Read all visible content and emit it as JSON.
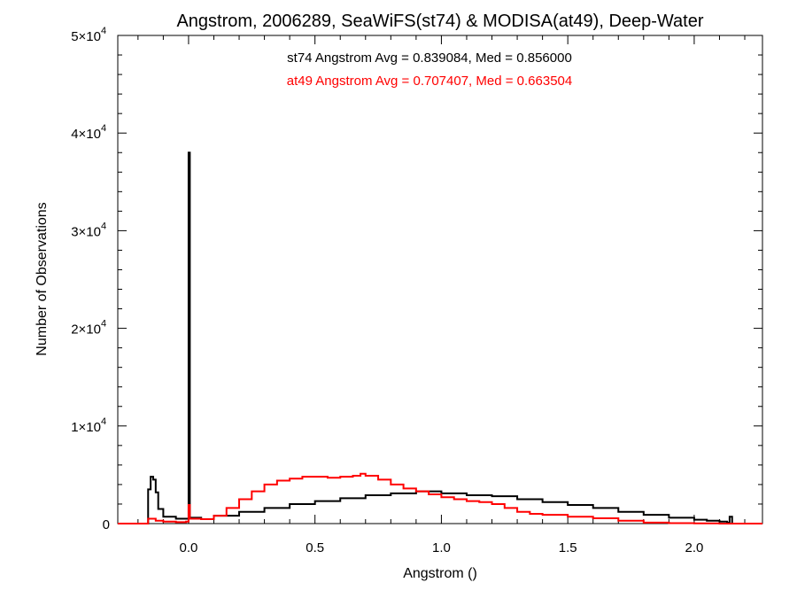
{
  "chart_data": {
    "type": "histogram",
    "title": "Angstrom, 2006289, SeaWiFS(st74) & MODISA(at49), Deep-Water",
    "xlabel": "Angstrom ()",
    "ylabel": "Number of Observations",
    "xlim": [
      -0.28,
      2.27
    ],
    "ylim": [
      0,
      50000
    ],
    "x_ticks": [
      {
        "value": 0.0,
        "label": "0.0"
      },
      {
        "value": 0.5,
        "label": "0.5"
      },
      {
        "value": 1.0,
        "label": "1.0"
      },
      {
        "value": 1.5,
        "label": "1.5"
      },
      {
        "value": 2.0,
        "label": "2.0"
      }
    ],
    "y_ticks": [
      {
        "value": 0,
        "label": "0",
        "exp": ""
      },
      {
        "value": 10000,
        "label": "1×10",
        "exp": "4"
      },
      {
        "value": 20000,
        "label": "2×10",
        "exp": "4"
      },
      {
        "value": 30000,
        "label": "3×10",
        "exp": "4"
      },
      {
        "value": 40000,
        "label": "4×10",
        "exp": "4"
      },
      {
        "value": 50000,
        "label": "5×10",
        "exp": "4"
      }
    ],
    "series": [
      {
        "name": "st74",
        "color": "#000000",
        "stats_text": "st74 Angstrom Avg = 0.839084, Med = 0.856000",
        "points": [
          [
            -0.28,
            0
          ],
          [
            -0.17,
            0
          ],
          [
            -0.16,
            3500
          ],
          [
            -0.15,
            4800
          ],
          [
            -0.14,
            4500
          ],
          [
            -0.13,
            3200
          ],
          [
            -0.12,
            1500
          ],
          [
            -0.1,
            700
          ],
          [
            -0.05,
            500
          ],
          [
            -0.01,
            500
          ],
          [
            0.0,
            38000
          ],
          [
            0.005,
            600
          ],
          [
            0.05,
            450
          ],
          [
            0.1,
            800
          ],
          [
            0.2,
            1200
          ],
          [
            0.3,
            1600
          ],
          [
            0.4,
            2000
          ],
          [
            0.5,
            2300
          ],
          [
            0.6,
            2600
          ],
          [
            0.7,
            2900
          ],
          [
            0.8,
            3100
          ],
          [
            0.9,
            3300
          ],
          [
            1.0,
            3100
          ],
          [
            1.1,
            2900
          ],
          [
            1.2,
            2800
          ],
          [
            1.3,
            2500
          ],
          [
            1.4,
            2200
          ],
          [
            1.5,
            1900
          ],
          [
            1.6,
            1600
          ],
          [
            1.7,
            1200
          ],
          [
            1.8,
            900
          ],
          [
            1.9,
            600
          ],
          [
            2.0,
            400
          ],
          [
            2.05,
            300
          ],
          [
            2.1,
            200
          ],
          [
            2.13,
            100
          ],
          [
            2.14,
            700
          ],
          [
            2.15,
            0
          ],
          [
            2.27,
            0
          ]
        ]
      },
      {
        "name": "at49",
        "color": "#ff0000",
        "stats_text": "at49 Angstrom Avg = 0.707407, Med = 0.663504",
        "points": [
          [
            -0.28,
            0
          ],
          [
            -0.17,
            0
          ],
          [
            -0.16,
            500
          ],
          [
            -0.13,
            300
          ],
          [
            -0.1,
            200
          ],
          [
            -0.05,
            150
          ],
          [
            -0.01,
            200
          ],
          [
            0.0,
            1900
          ],
          [
            0.005,
            500
          ],
          [
            0.05,
            450
          ],
          [
            0.1,
            800
          ],
          [
            0.15,
            1600
          ],
          [
            0.2,
            2500
          ],
          [
            0.25,
            3300
          ],
          [
            0.3,
            4000
          ],
          [
            0.35,
            4400
          ],
          [
            0.4,
            4600
          ],
          [
            0.45,
            4800
          ],
          [
            0.5,
            4800
          ],
          [
            0.55,
            4700
          ],
          [
            0.6,
            4800
          ],
          [
            0.65,
            4900
          ],
          [
            0.68,
            5100
          ],
          [
            0.7,
            4900
          ],
          [
            0.75,
            4500
          ],
          [
            0.8,
            4000
          ],
          [
            0.85,
            3600
          ],
          [
            0.9,
            3300
          ],
          [
            0.95,
            3000
          ],
          [
            1.0,
            2700
          ],
          [
            1.05,
            2500
          ],
          [
            1.1,
            2300
          ],
          [
            1.15,
            2200
          ],
          [
            1.2,
            2000
          ],
          [
            1.25,
            1600
          ],
          [
            1.3,
            1200
          ],
          [
            1.35,
            1000
          ],
          [
            1.4,
            900
          ],
          [
            1.5,
            700
          ],
          [
            1.6,
            550
          ],
          [
            1.7,
            300
          ],
          [
            1.8,
            100
          ],
          [
            1.9,
            50
          ],
          [
            2.0,
            20
          ],
          [
            2.1,
            0
          ],
          [
            2.27,
            0
          ]
        ]
      }
    ]
  }
}
